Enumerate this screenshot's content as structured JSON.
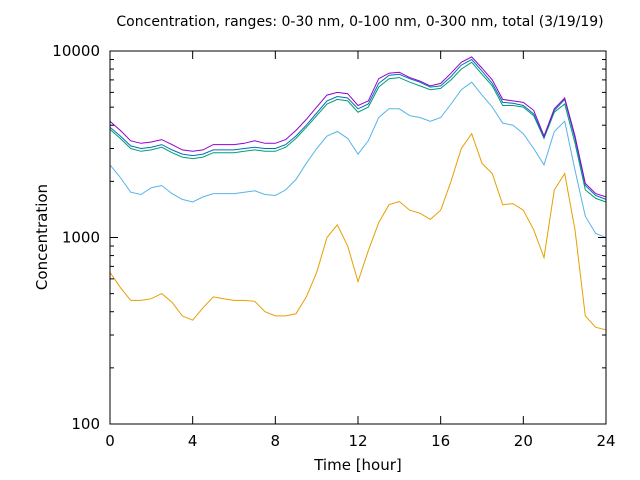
{
  "chart_data": {
    "type": "line",
    "title": "Concentration, ranges: 0-30 nm, 0-100 nm, 0-300 nm, total (3/19/19)",
    "xlabel": "Time [hour]",
    "ylabel": "Concentration",
    "xlim": [
      0,
      24
    ],
    "ylim": [
      100,
      10000
    ],
    "yscale": "log",
    "grid": false,
    "x_ticks": [
      0,
      4,
      8,
      12,
      16,
      20,
      24
    ],
    "y_ticks": [
      100,
      1000,
      10000
    ],
    "x_tick_labels": [
      "0",
      "4",
      "8",
      "12",
      "16",
      "20",
      "24"
    ],
    "y_tick_labels": [
      "100",
      "1000",
      "10000"
    ],
    "x": [
      0,
      0.5,
      1,
      1.5,
      2,
      2.5,
      3,
      3.5,
      4,
      4.5,
      5,
      5.5,
      6,
      6.5,
      7,
      7.5,
      8,
      8.5,
      9,
      9.5,
      10,
      10.5,
      11,
      11.5,
      12,
      12.5,
      13,
      13.5,
      14,
      14.5,
      15,
      15.5,
      16,
      16.5,
      17,
      17.5,
      18,
      18.5,
      19,
      19.5,
      20,
      20.5,
      21,
      21.5,
      22,
      22.5,
      23,
      23.5,
      24
    ],
    "series": [
      {
        "color": "#e69f00",
        "values": [
          650,
          540,
          460,
          460,
          470,
          500,
          450,
          380,
          360,
          420,
          480,
          470,
          460,
          460,
          455,
          400,
          380,
          380,
          390,
          480,
          650,
          1000,
          1170,
          900,
          580,
          850,
          1200,
          1500,
          1560,
          1400,
          1350,
          1250,
          1400,
          2000,
          3000,
          3600,
          2500,
          2200,
          1500,
          1520,
          1400,
          1100,
          780,
          1800,
          2200,
          1100,
          380,
          330,
          320
        ]
      },
      {
        "color": "#56b4e9",
        "values": [
          2450,
          2100,
          1750,
          1700,
          1850,
          1900,
          1720,
          1600,
          1550,
          1650,
          1720,
          1720,
          1720,
          1750,
          1780,
          1700,
          1680,
          1800,
          2050,
          2500,
          3000,
          3500,
          3700,
          3400,
          2800,
          3300,
          4400,
          4900,
          4900,
          4500,
          4400,
          4200,
          4400,
          5200,
          6200,
          6800,
          5800,
          5000,
          4100,
          4000,
          3600,
          3000,
          2450,
          3700,
          4200,
          2300,
          1300,
          1050,
          1000
        ]
      },
      {
        "color": "#009e73",
        "values": [
          3800,
          3400,
          3000,
          2900,
          2950,
          3050,
          2850,
          2700,
          2650,
          2700,
          2850,
          2850,
          2850,
          2900,
          2950,
          2900,
          2900,
          3050,
          3400,
          3900,
          4500,
          5200,
          5500,
          5400,
          4700,
          5000,
          6400,
          7100,
          7200,
          6800,
          6500,
          6200,
          6300,
          7000,
          8000,
          8700,
          7500,
          6500,
          5100,
          5100,
          5000,
          4500,
          3400,
          4700,
          5200,
          3200,
          1800,
          1620,
          1550
        ]
      },
      {
        "color": "#0072b2",
        "values": [
          3900,
          3500,
          3100,
          3000,
          3050,
          3150,
          2950,
          2800,
          2750,
          2800,
          2950,
          2950,
          2950,
          3000,
          3050,
          3000,
          3000,
          3150,
          3500,
          4000,
          4650,
          5400,
          5700,
          5600,
          4900,
          5200,
          6700,
          7400,
          7500,
          7100,
          6800,
          6400,
          6500,
          7300,
          8400,
          9000,
          7800,
          6700,
          5300,
          5250,
          5100,
          4600,
          3450,
          4800,
          5500,
          3400,
          1900,
          1680,
          1600
        ]
      },
      {
        "color": "#9400d3",
        "values": [
          4200,
          3750,
          3300,
          3200,
          3250,
          3350,
          3150,
          2950,
          2900,
          2950,
          3150,
          3150,
          3150,
          3200,
          3300,
          3200,
          3200,
          3350,
          3750,
          4300,
          5000,
          5800,
          6000,
          5900,
          5100,
          5400,
          7100,
          7600,
          7700,
          7200,
          6900,
          6500,
          6700,
          7600,
          8700,
          9300,
          8100,
          7000,
          5500,
          5400,
          5300,
          4800,
          3500,
          4900,
          5600,
          3500,
          1950,
          1720,
          1650
        ]
      }
    ]
  }
}
